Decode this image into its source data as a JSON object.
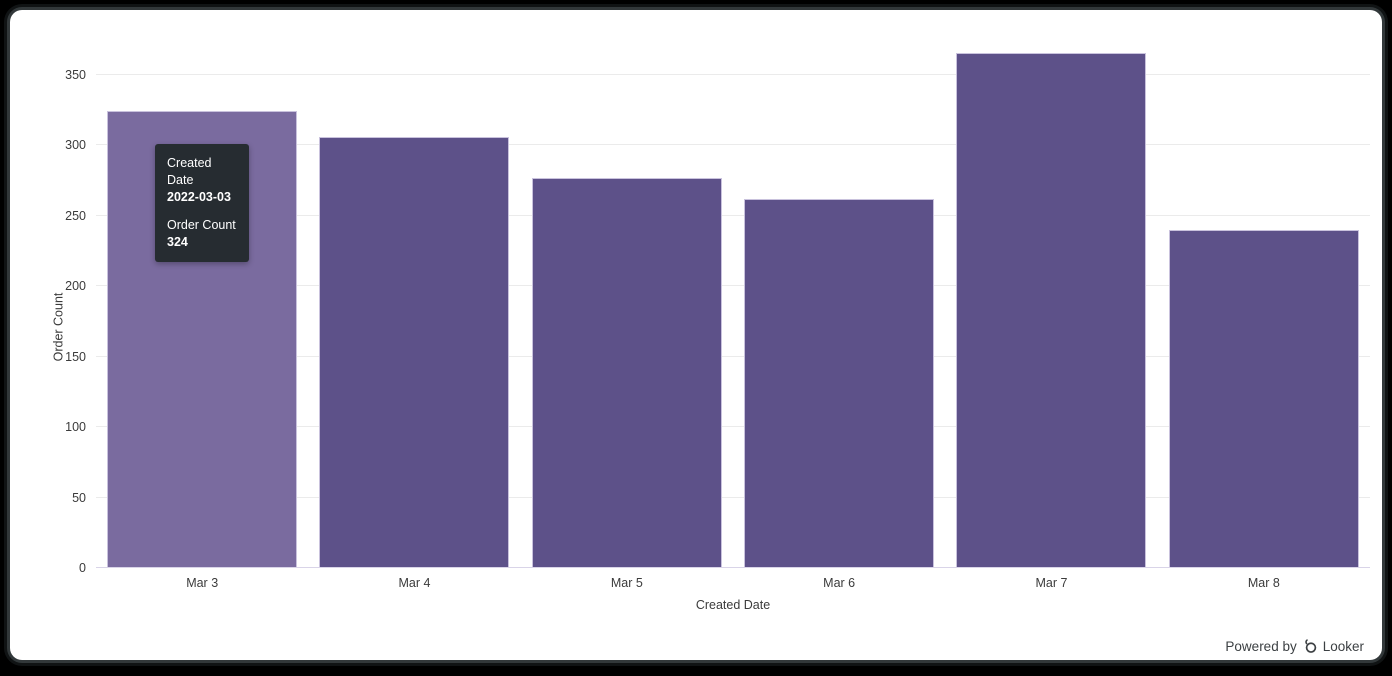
{
  "chart_data": {
    "type": "bar",
    "title": "",
    "categories": [
      "Mar 3",
      "Mar 4",
      "Mar 5",
      "Mar 6",
      "Mar 7",
      "Mar 8"
    ],
    "values": [
      324,
      305,
      276,
      261,
      365,
      239
    ],
    "series_name": "Order Count",
    "xlabel": "Created Date",
    "ylabel": "Order Count",
    "ylim": [
      0,
      350
    ],
    "yticks": [
      0,
      50,
      100,
      150,
      200,
      250,
      300,
      350
    ],
    "grid": true,
    "legend": "none",
    "hovered_index": 0,
    "colors": {
      "bar": "#5d5189",
      "bar_hover": "#7a6b9f",
      "bar_border": "#c9c2dd",
      "gridline": "#ebebeb",
      "baseline": "#d9d4e8",
      "tick_text": "#3b3b3b"
    }
  },
  "tooltip": {
    "label1": "Created Date",
    "value1": "2022-03-03",
    "label2": "Order Count",
    "value2": "324",
    "bg": "#262c31",
    "text_color": "#ffffff"
  },
  "footer": {
    "powered_by": "Powered by",
    "brand": "Looker",
    "color": "#3c4043"
  }
}
